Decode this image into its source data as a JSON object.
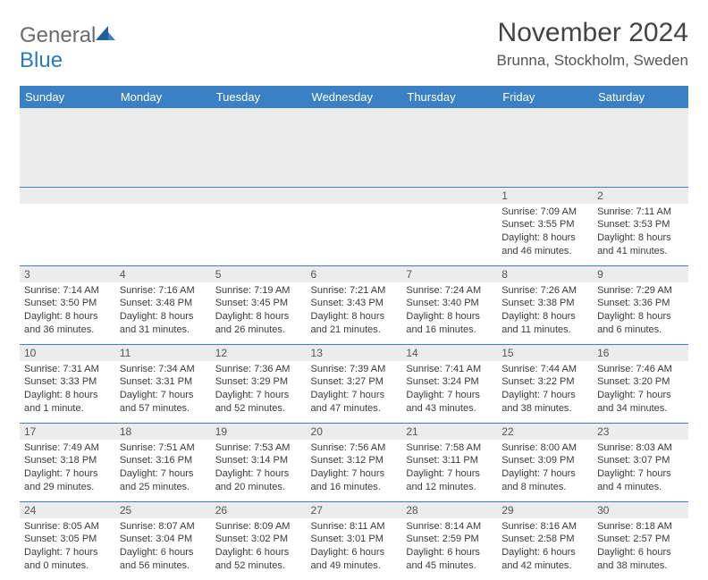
{
  "brand": {
    "word1": "General",
    "word2": "Blue"
  },
  "header": {
    "title": "November 2024",
    "location": "Brunna, Stockholm, Sweden"
  },
  "styling": {
    "header_bg": "#3a80c4",
    "header_text": "#ffffff",
    "daynum_bg": "#ececec",
    "border_color": "#3a80c4",
    "body_text": "#3a3a3a",
    "title_fontsize": 30,
    "location_fontsize": 17,
    "dayhead_fontsize": 13,
    "cell_fontsize": 11
  },
  "day_names": [
    "Sunday",
    "Monday",
    "Tuesday",
    "Wednesday",
    "Thursday",
    "Friday",
    "Saturday"
  ],
  "weeks": [
    [
      {
        "n": "",
        "sr": "",
        "ss": "",
        "dl": ""
      },
      {
        "n": "",
        "sr": "",
        "ss": "",
        "dl": ""
      },
      {
        "n": "",
        "sr": "",
        "ss": "",
        "dl": ""
      },
      {
        "n": "",
        "sr": "",
        "ss": "",
        "dl": ""
      },
      {
        "n": "",
        "sr": "",
        "ss": "",
        "dl": ""
      },
      {
        "n": "1",
        "sr": "Sunrise: 7:09 AM",
        "ss": "Sunset: 3:55 PM",
        "dl": "Daylight: 8 hours and 46 minutes."
      },
      {
        "n": "2",
        "sr": "Sunrise: 7:11 AM",
        "ss": "Sunset: 3:53 PM",
        "dl": "Daylight: 8 hours and 41 minutes."
      }
    ],
    [
      {
        "n": "3",
        "sr": "Sunrise: 7:14 AM",
        "ss": "Sunset: 3:50 PM",
        "dl": "Daylight: 8 hours and 36 minutes."
      },
      {
        "n": "4",
        "sr": "Sunrise: 7:16 AM",
        "ss": "Sunset: 3:48 PM",
        "dl": "Daylight: 8 hours and 31 minutes."
      },
      {
        "n": "5",
        "sr": "Sunrise: 7:19 AM",
        "ss": "Sunset: 3:45 PM",
        "dl": "Daylight: 8 hours and 26 minutes."
      },
      {
        "n": "6",
        "sr": "Sunrise: 7:21 AM",
        "ss": "Sunset: 3:43 PM",
        "dl": "Daylight: 8 hours and 21 minutes."
      },
      {
        "n": "7",
        "sr": "Sunrise: 7:24 AM",
        "ss": "Sunset: 3:40 PM",
        "dl": "Daylight: 8 hours and 16 minutes."
      },
      {
        "n": "8",
        "sr": "Sunrise: 7:26 AM",
        "ss": "Sunset: 3:38 PM",
        "dl": "Daylight: 8 hours and 11 minutes."
      },
      {
        "n": "9",
        "sr": "Sunrise: 7:29 AM",
        "ss": "Sunset: 3:36 PM",
        "dl": "Daylight: 8 hours and 6 minutes."
      }
    ],
    [
      {
        "n": "10",
        "sr": "Sunrise: 7:31 AM",
        "ss": "Sunset: 3:33 PM",
        "dl": "Daylight: 8 hours and 1 minute."
      },
      {
        "n": "11",
        "sr": "Sunrise: 7:34 AM",
        "ss": "Sunset: 3:31 PM",
        "dl": "Daylight: 7 hours and 57 minutes."
      },
      {
        "n": "12",
        "sr": "Sunrise: 7:36 AM",
        "ss": "Sunset: 3:29 PM",
        "dl": "Daylight: 7 hours and 52 minutes."
      },
      {
        "n": "13",
        "sr": "Sunrise: 7:39 AM",
        "ss": "Sunset: 3:27 PM",
        "dl": "Daylight: 7 hours and 47 minutes."
      },
      {
        "n": "14",
        "sr": "Sunrise: 7:41 AM",
        "ss": "Sunset: 3:24 PM",
        "dl": "Daylight: 7 hours and 43 minutes."
      },
      {
        "n": "15",
        "sr": "Sunrise: 7:44 AM",
        "ss": "Sunset: 3:22 PM",
        "dl": "Daylight: 7 hours and 38 minutes."
      },
      {
        "n": "16",
        "sr": "Sunrise: 7:46 AM",
        "ss": "Sunset: 3:20 PM",
        "dl": "Daylight: 7 hours and 34 minutes."
      }
    ],
    [
      {
        "n": "17",
        "sr": "Sunrise: 7:49 AM",
        "ss": "Sunset: 3:18 PM",
        "dl": "Daylight: 7 hours and 29 minutes."
      },
      {
        "n": "18",
        "sr": "Sunrise: 7:51 AM",
        "ss": "Sunset: 3:16 PM",
        "dl": "Daylight: 7 hours and 25 minutes."
      },
      {
        "n": "19",
        "sr": "Sunrise: 7:53 AM",
        "ss": "Sunset: 3:14 PM",
        "dl": "Daylight: 7 hours and 20 minutes."
      },
      {
        "n": "20",
        "sr": "Sunrise: 7:56 AM",
        "ss": "Sunset: 3:12 PM",
        "dl": "Daylight: 7 hours and 16 minutes."
      },
      {
        "n": "21",
        "sr": "Sunrise: 7:58 AM",
        "ss": "Sunset: 3:11 PM",
        "dl": "Daylight: 7 hours and 12 minutes."
      },
      {
        "n": "22",
        "sr": "Sunrise: 8:00 AM",
        "ss": "Sunset: 3:09 PM",
        "dl": "Daylight: 7 hours and 8 minutes."
      },
      {
        "n": "23",
        "sr": "Sunrise: 8:03 AM",
        "ss": "Sunset: 3:07 PM",
        "dl": "Daylight: 7 hours and 4 minutes."
      }
    ],
    [
      {
        "n": "24",
        "sr": "Sunrise: 8:05 AM",
        "ss": "Sunset: 3:05 PM",
        "dl": "Daylight: 7 hours and 0 minutes."
      },
      {
        "n": "25",
        "sr": "Sunrise: 8:07 AM",
        "ss": "Sunset: 3:04 PM",
        "dl": "Daylight: 6 hours and 56 minutes."
      },
      {
        "n": "26",
        "sr": "Sunrise: 8:09 AM",
        "ss": "Sunset: 3:02 PM",
        "dl": "Daylight: 6 hours and 52 minutes."
      },
      {
        "n": "27",
        "sr": "Sunrise: 8:11 AM",
        "ss": "Sunset: 3:01 PM",
        "dl": "Daylight: 6 hours and 49 minutes."
      },
      {
        "n": "28",
        "sr": "Sunrise: 8:14 AM",
        "ss": "Sunset: 2:59 PM",
        "dl": "Daylight: 6 hours and 45 minutes."
      },
      {
        "n": "29",
        "sr": "Sunrise: 8:16 AM",
        "ss": "Sunset: 2:58 PM",
        "dl": "Daylight: 6 hours and 42 minutes."
      },
      {
        "n": "30",
        "sr": "Sunrise: 8:18 AM",
        "ss": "Sunset: 2:57 PM",
        "dl": "Daylight: 6 hours and 38 minutes."
      }
    ]
  ]
}
